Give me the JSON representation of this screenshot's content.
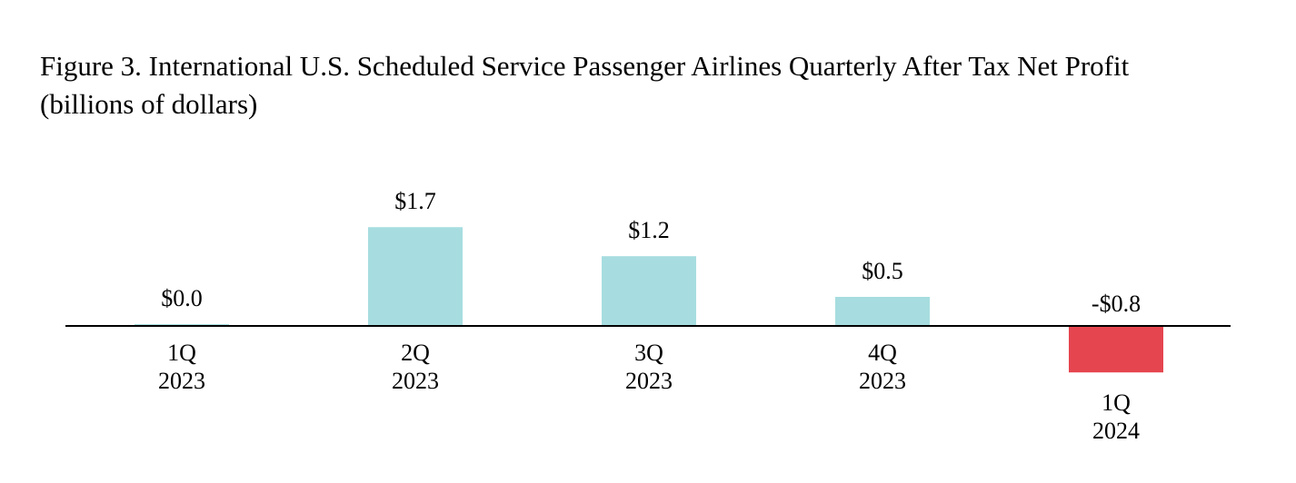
{
  "chart_data": {
    "type": "bar",
    "title": "Figure 3. International U.S. Scheduled Service Passenger Airlines Quarterly After Tax Net Profit",
    "subtitle": "(billions of dollars)",
    "categories": [
      [
        "1Q",
        "2023"
      ],
      [
        "2Q",
        "2023"
      ],
      [
        "3Q",
        "2023"
      ],
      [
        "4Q",
        "2023"
      ],
      [
        "1Q",
        "2024"
      ]
    ],
    "values": [
      0.0,
      1.7,
      1.2,
      0.5,
      -0.8
    ],
    "value_labels": [
      "$0.0",
      "$1.7",
      "$1.2",
      "$0.5",
      "-$0.8"
    ],
    "xlabel": "",
    "ylabel": "",
    "ylim": [
      -0.8,
      1.7
    ],
    "grid": false,
    "legend": "none",
    "colors": {
      "positive": "#a7dde0",
      "negative": "#e5454f",
      "axis": "#000000"
    }
  }
}
